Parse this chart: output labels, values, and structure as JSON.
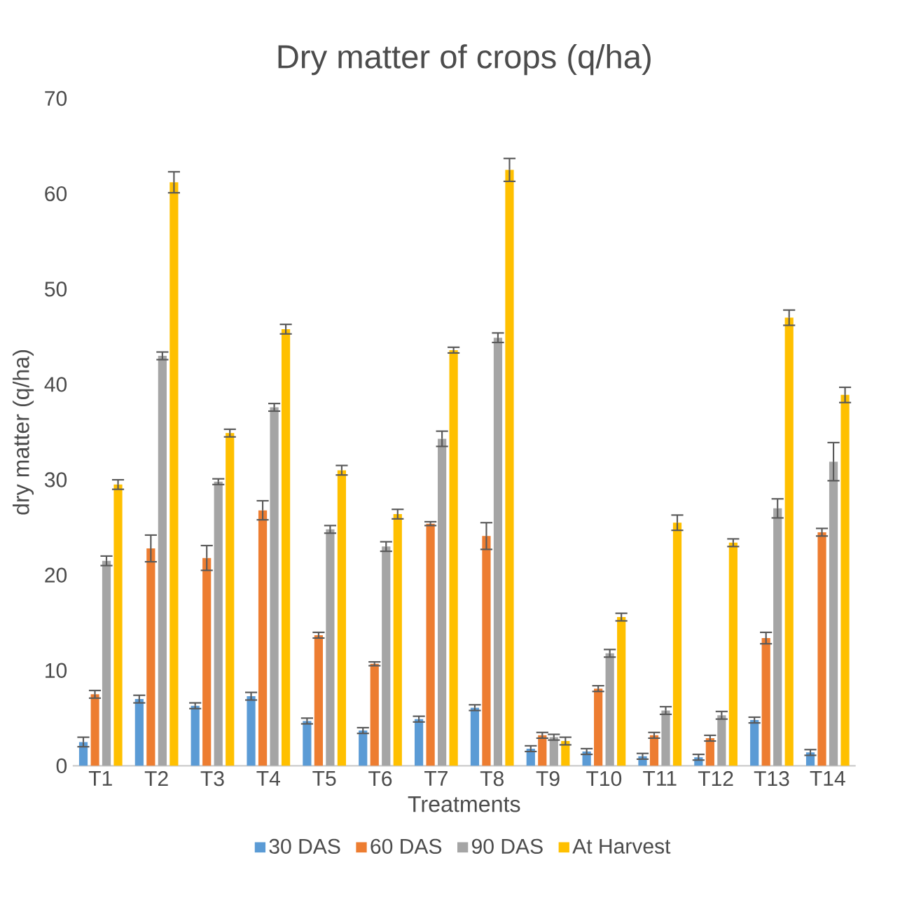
{
  "chart_data": {
    "type": "bar",
    "title": "Dry matter of crops (q/ha)",
    "xlabel": "Treatments",
    "ylabel": "dry matter (q/ha)",
    "categories": [
      "T1",
      "T2",
      "T3",
      "T4",
      "T5",
      "T6",
      "T7",
      "T8",
      "T9",
      "T10",
      "T11",
      "T12",
      "T13",
      "T14"
    ],
    "series": [
      {
        "name": "30 DAS",
        "color": "#5b9bd5",
        "values": [
          2.5,
          7.0,
          6.3,
          7.3,
          4.7,
          3.7,
          4.9,
          6.1,
          1.8,
          1.5,
          1.0,
          0.9,
          4.8,
          1.4
        ],
        "errors": [
          0.5,
          0.4,
          0.3,
          0.4,
          0.3,
          0.3,
          0.3,
          0.3,
          0.3,
          0.3,
          0.3,
          0.3,
          0.3,
          0.3
        ]
      },
      {
        "name": "60 DAS",
        "color": "#ed7d31",
        "values": [
          7.5,
          22.8,
          21.8,
          26.8,
          13.7,
          10.7,
          25.4,
          24.1,
          3.2,
          8.1,
          3.2,
          2.9,
          13.4,
          24.5
        ],
        "errors": [
          0.4,
          1.4,
          1.3,
          1.0,
          0.3,
          0.2,
          0.2,
          1.4,
          0.3,
          0.3,
          0.3,
          0.3,
          0.6,
          0.4
        ]
      },
      {
        "name": "90 DAS",
        "color": "#a5a5a5",
        "values": [
          21.5,
          43.0,
          29.8,
          37.6,
          24.8,
          23.0,
          34.3,
          44.9,
          3.0,
          11.8,
          5.8,
          5.3,
          27.0,
          31.9
        ],
        "errors": [
          0.5,
          0.4,
          0.3,
          0.4,
          0.4,
          0.5,
          0.8,
          0.5,
          0.3,
          0.4,
          0.4,
          0.4,
          1.0,
          2.0
        ]
      },
      {
        "name": "At Harvest",
        "color": "#ffc000",
        "values": [
          29.5,
          61.2,
          34.9,
          45.8,
          31.0,
          26.4,
          43.6,
          62.5,
          2.6,
          15.6,
          25.5,
          23.4,
          47.0,
          38.9
        ],
        "errors": [
          0.5,
          1.1,
          0.4,
          0.5,
          0.5,
          0.5,
          0.3,
          1.2,
          0.4,
          0.4,
          0.8,
          0.4,
          0.8,
          0.8
        ]
      }
    ],
    "ylim": [
      0,
      70
    ],
    "yticks": [
      0,
      10,
      20,
      30,
      40,
      50,
      60,
      70
    ],
    "legend": "bottom"
  }
}
